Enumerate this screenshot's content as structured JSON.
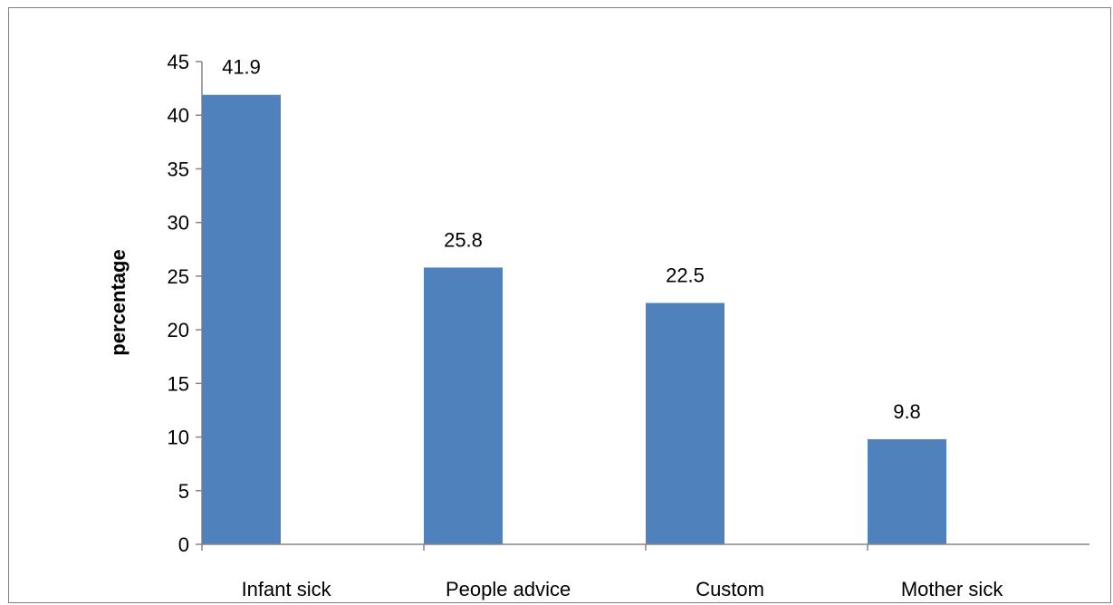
{
  "chart_data": {
    "type": "bar",
    "title": "",
    "xlabel": "",
    "ylabel": "percentage",
    "categories": [
      "Infant sick",
      "People advice",
      "Custom",
      "Mother sick"
    ],
    "values": [
      41.9,
      25.8,
      22.5,
      9.8
    ],
    "data_labels": [
      "41.9",
      "25.8",
      "22.5",
      "9.8"
    ],
    "ylim": [
      0,
      45
    ],
    "yticks": [
      0,
      5,
      10,
      15,
      20,
      25,
      30,
      35,
      40,
      45
    ],
    "bar_color": "#4f81bd",
    "grid": false,
    "legend": "none"
  }
}
